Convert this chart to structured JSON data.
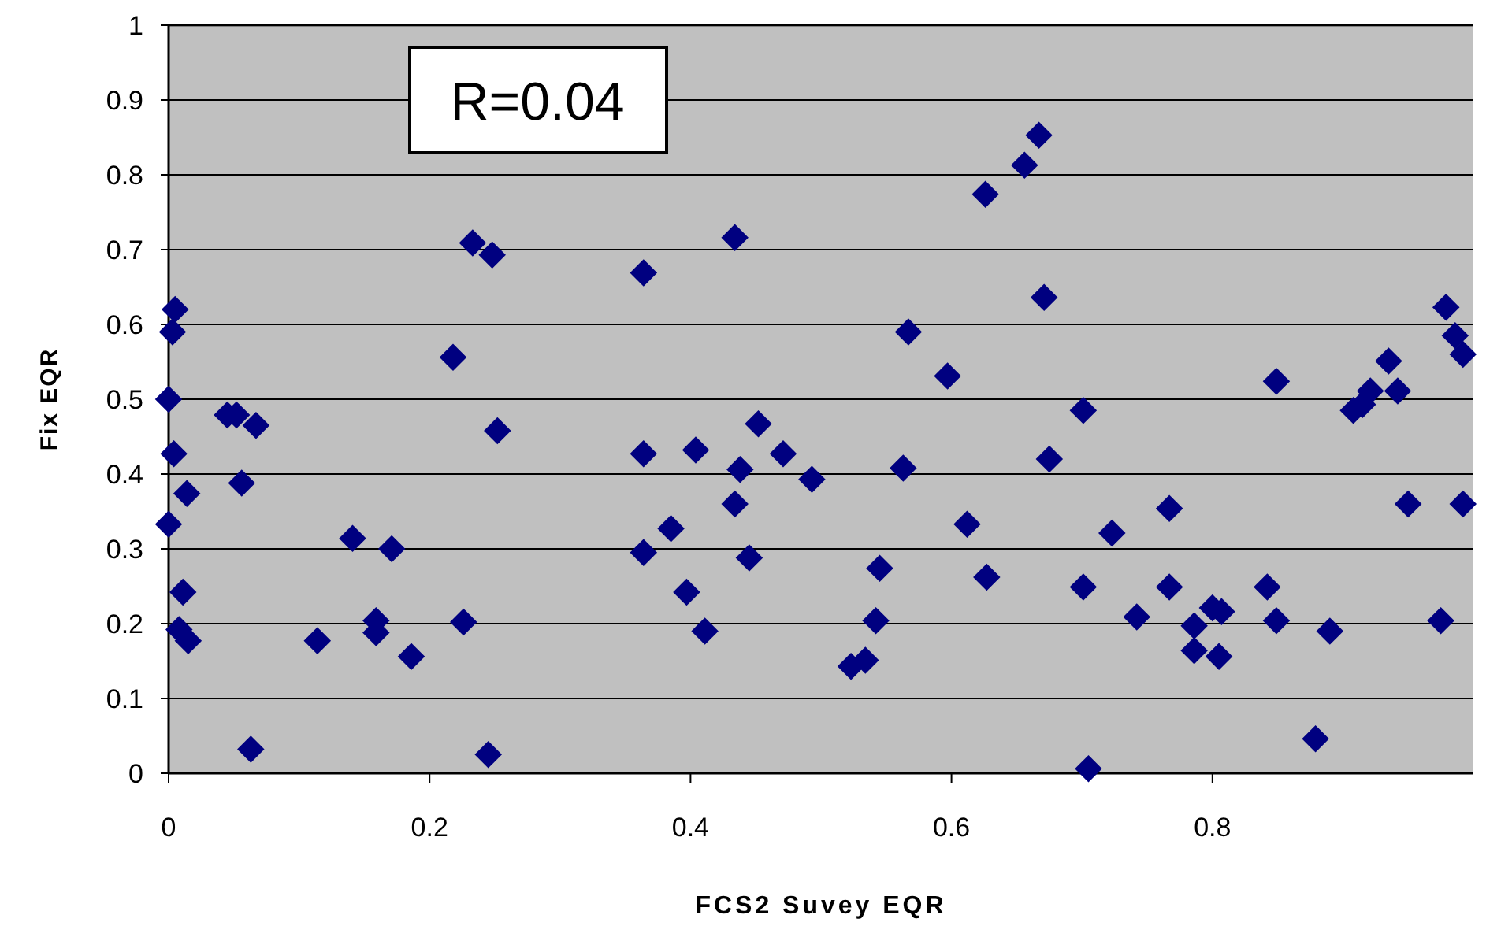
{
  "chart_data": {
    "type": "scatter",
    "xlabel": "FCS2 Suvey EQR",
    "ylabel": "Fix EQR",
    "annotations": [
      "R=0.04"
    ],
    "marker": "diamond",
    "grid": "y",
    "xlim": [
      0,
      1
    ],
    "xticks": [
      0,
      0.2,
      0.4,
      0.6,
      0.8
    ],
    "ylim": [
      0,
      1
    ],
    "yticks": [
      0,
      0.1,
      0.2,
      0.3,
      0.4,
      0.5,
      0.6,
      0.7,
      0.8,
      0.9,
      1
    ],
    "series": [
      {
        "color": "#000080",
        "x": [
          0.005,
          0.003,
          0,
          0.004,
          0.045,
          0.052,
          0.067,
          0.218,
          0.233,
          0.248,
          0.252,
          0.364,
          0.364,
          0.404,
          0.434,
          0.014,
          0,
          0.056,
          0.141,
          0.171,
          0.011,
          0.008,
          0.015,
          0.114,
          0.159,
          0.159,
          0.186,
          0.226,
          0.063,
          0.245,
          0.364,
          0.385,
          0.397,
          0.411,
          0.438,
          0.434,
          0.445,
          0.452,
          0.471,
          0.493,
          0.563,
          0.567,
          0.597,
          0.626,
          0.656,
          0.667,
          0.671,
          0.701,
          0.675,
          0.849,
          0.908,
          0.915,
          0.921,
          0.935,
          0.942,
          0.979,
          0.986,
          0.992,
          0.545,
          0.542,
          0.523,
          0.534,
          0.612,
          0.627,
          0.701,
          0.723,
          0.705,
          0.742,
          0.767,
          0.767,
          0.786,
          0.786,
          0.8,
          0.807,
          0.805,
          0.842,
          0.849,
          0.89,
          0.879,
          0.95,
          0.992,
          0.975
        ],
        "values": [
          0.62,
          0.59,
          0.5,
          0.427,
          0.479,
          0.479,
          0.465,
          0.556,
          0.709,
          0.693,
          0.458,
          0.669,
          0.427,
          0.432,
          0.716,
          0.374,
          0.333,
          0.388,
          0.314,
          0.3,
          0.242,
          0.192,
          0.177,
          0.177,
          0.204,
          0.188,
          0.156,
          0.202,
          0.032,
          0.025,
          0.295,
          0.327,
          0.242,
          0.19,
          0.406,
          0.36,
          0.288,
          0.467,
          0.427,
          0.393,
          0.408,
          0.59,
          0.531,
          0.774,
          0.813,
          0.853,
          0.636,
          0.485,
          0.42,
          0.524,
          0.485,
          0.493,
          0.511,
          0.551,
          0.511,
          0.623,
          0.585,
          0.56,
          0.274,
          0.204,
          0.143,
          0.151,
          0.333,
          0.262,
          0.249,
          0.321,
          0.006,
          0.209,
          0.354,
          0.249,
          0.197,
          0.164,
          0.221,
          0.216,
          0.156,
          0.249,
          0.204,
          0.19,
          0.046,
          0.36,
          0.36,
          0.204
        ]
      }
    ]
  }
}
